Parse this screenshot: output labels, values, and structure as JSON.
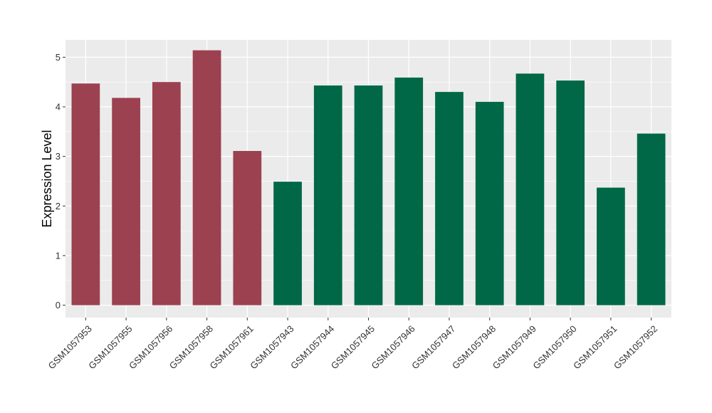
{
  "chart_data": {
    "type": "bar",
    "title": "",
    "xlabel": "",
    "ylabel": "Expression Level",
    "ylim": [
      -0.25,
      5.35
    ],
    "yticks": [
      0,
      1,
      2,
      3,
      4,
      5
    ],
    "ytick_labels": [
      "0",
      "1",
      "2",
      "3",
      "4",
      "5"
    ],
    "grid": true,
    "panel_background": "#ebebeb",
    "grid_color": "#ffffff",
    "categories": [
      "GSM1057953",
      "GSM1057955",
      "GSM1057956",
      "GSM1057958",
      "GSM1057961",
      "GSM1057943",
      "GSM1057944",
      "GSM1057945",
      "GSM1057946",
      "GSM1057947",
      "GSM1057948",
      "GSM1057949",
      "GSM1057950",
      "GSM1057951",
      "GSM1057952"
    ],
    "values": [
      4.47,
      4.18,
      4.5,
      5.14,
      3.11,
      2.49,
      4.43,
      4.43,
      4.59,
      4.3,
      4.1,
      4.67,
      4.53,
      2.37,
      3.46
    ],
    "bar_colors": [
      "#9b4150",
      "#9b4150",
      "#9b4150",
      "#9b4150",
      "#9b4150",
      "#006846",
      "#006846",
      "#006846",
      "#006846",
      "#006846",
      "#006846",
      "#006846",
      "#006846",
      "#006846",
      "#006846"
    ]
  }
}
